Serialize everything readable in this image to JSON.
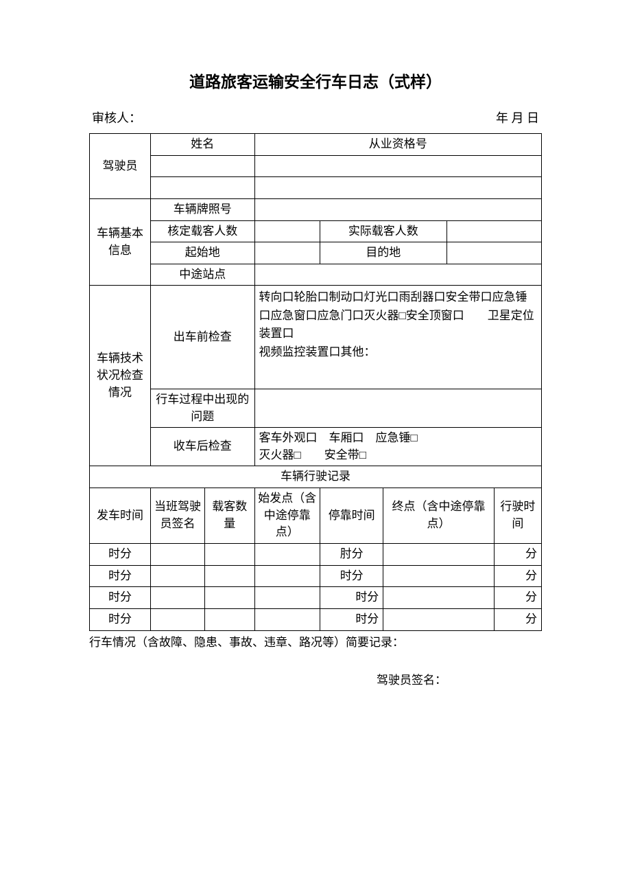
{
  "title": "道路旅客运输安全行车日志（式样）",
  "meta": {
    "auditor_label": "审核人：",
    "date_label": "年 月 日"
  },
  "labels": {
    "driver": "驾驶员",
    "name": "姓名",
    "qualification": "从业资格号",
    "vehicle_base": "车辆基本信息",
    "plate": "车辆牌照号",
    "capacity": "核定载客人数",
    "actual_passengers": "实际载客人数",
    "origin": "起始地",
    "destination": "目的地",
    "midway": "中途站点",
    "tech_check": "车辆技术状况检查情况",
    "pre_check": "出车前检查",
    "in_trip_issue": "行车过程中出现的问题",
    "post_check": "收车后检查",
    "drive_record": "车辆行驶记录",
    "depart_time": "发车时间",
    "duty_driver_sign": "当班驾驶员签名",
    "passenger_count": "载客数量",
    "start_point": "始发点（含中途停靠点）",
    "stop_time": "停靠时间",
    "end_point": "终点（含中途停靠点）",
    "drive_duration": "行驶时间"
  },
  "check_items": {
    "pre_check_text": "转向口轮胎口制动口灯光口雨刮器口安全带口应急锤口应急窗口应急门口灭火器□安全顶窗口　　卫星定位装置口\n视频监控装置口其他：",
    "post_check_text": "客车外观口　车厢口　应急锤□\n灭火器□　　安全带□"
  },
  "record_rows": [
    {
      "depart": "时分",
      "stop": "肘分",
      "dur": "分"
    },
    {
      "depart": "时分",
      "stop": "时分",
      "dur": "分"
    },
    {
      "depart": "时分",
      "stop": "时分",
      "dur": "分"
    },
    {
      "depart": "时分",
      "stop": "时分",
      "dur": "分"
    }
  ],
  "notes": "行车情况（含故障、隐患、事故、违章、路况等）简要记录：",
  "driver_sign": "驾驶员签名："
}
